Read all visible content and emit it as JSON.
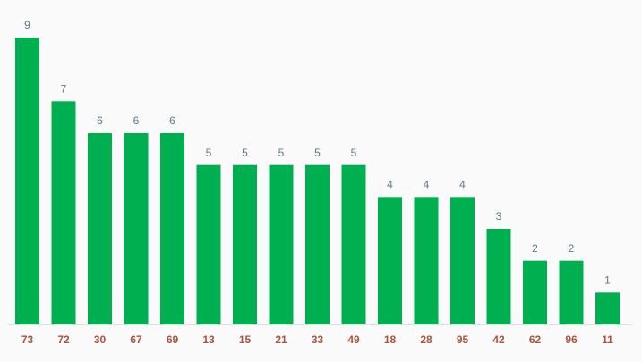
{
  "chart_data": {
    "type": "bar",
    "categories": [
      "73",
      "72",
      "30",
      "67",
      "69",
      "13",
      "15",
      "21",
      "33",
      "49",
      "18",
      "28",
      "95",
      "42",
      "62",
      "96",
      "11"
    ],
    "values": [
      9,
      7,
      6,
      6,
      6,
      5,
      5,
      5,
      5,
      5,
      4,
      4,
      4,
      3,
      2,
      2,
      1
    ],
    "color": "#00b050"
  }
}
